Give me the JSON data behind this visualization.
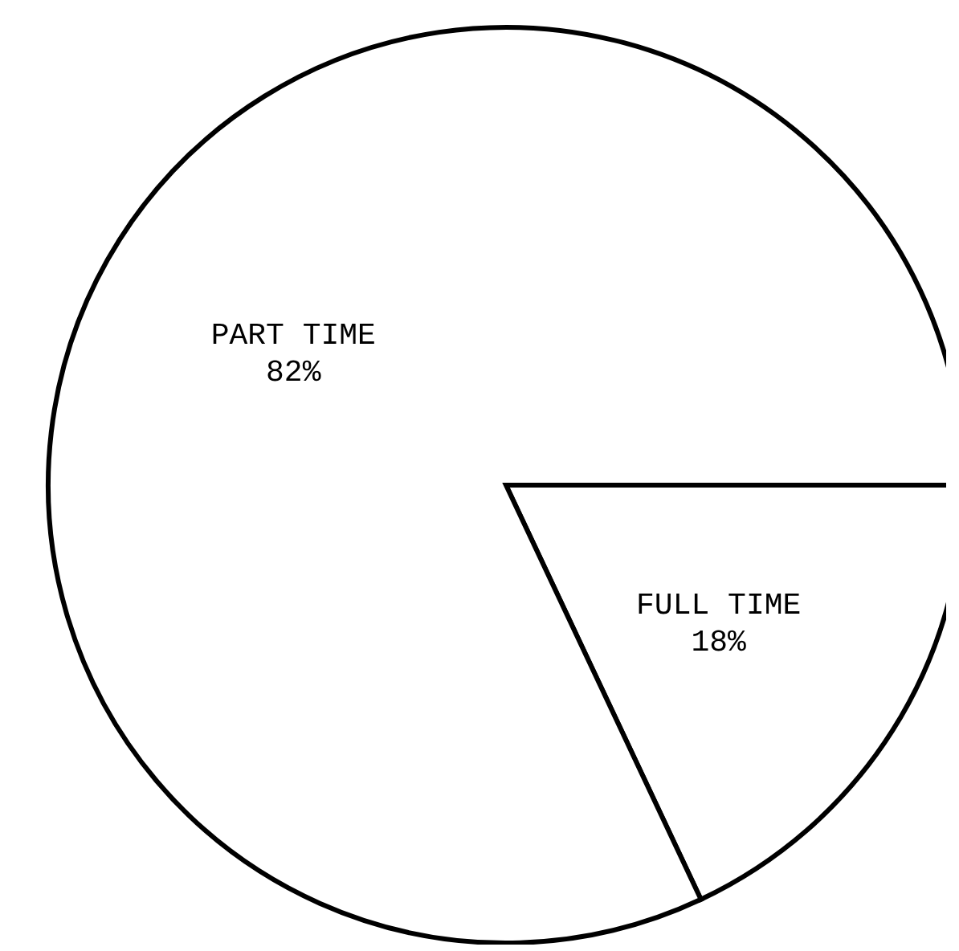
{
  "chart_data": {
    "type": "pie",
    "categories": [
      "FULL TIME",
      "PART TIME"
    ],
    "values": [
      18,
      82
    ],
    "colors": [
      "#ffffff",
      "#ffffff"
    ],
    "value_labels": [
      "18%",
      "82%"
    ]
  }
}
